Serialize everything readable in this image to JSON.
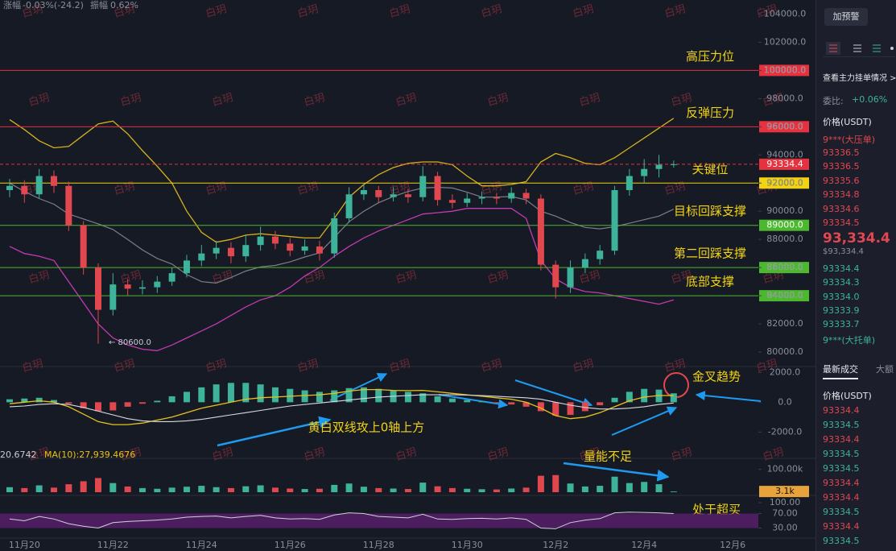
{
  "header": {
    "change_label": "涨幅",
    "change": "-0.03%(-24.2)",
    "amplitude_label": "振幅",
    "amplitude": "0.62%"
  },
  "watermark": "白玥",
  "chart_data": {
    "type": "candlestick",
    "up_color": "#3cb39a",
    "down_color": "#e0474f",
    "categories": [
      null,
      "11月20",
      null,
      null,
      null,
      null,
      null,
      "11月22",
      null,
      null,
      null,
      null,
      null,
      "11月24",
      null,
      null,
      null,
      null,
      null,
      "11月26",
      null,
      null,
      null,
      null,
      null,
      "11月28",
      null,
      null,
      null,
      null,
      null,
      "11月30",
      null,
      null,
      null,
      null,
      null,
      "12月2",
      null,
      null,
      null,
      null,
      null,
      "12月4",
      null,
      null,
      null,
      null,
      null,
      "12月6"
    ],
    "open": [
      91500,
      91800,
      91200,
      92500,
      91800,
      89000,
      86000,
      83000,
      84800,
      84500,
      84600,
      85000,
      85600,
      86500,
      87000,
      87400,
      86800,
      87600,
      88200,
      87700,
      87200,
      87500,
      87000,
      89500,
      91200,
      91500,
      91000,
      91200,
      91000,
      92500,
      90800,
      90600,
      90900,
      91000,
      90900,
      91300,
      90900,
      86200,
      84600,
      86000,
      86600,
      87200,
      91500,
      92500,
      93000,
      93300,
      null,
      null,
      null,
      null
    ],
    "high": [
      92300,
      92200,
      93000,
      92900,
      92100,
      89300,
      86300,
      85600,
      85200,
      85100,
      85400,
      86000,
      86900,
      87600,
      87900,
      87800,
      88300,
      88900,
      88600,
      88100,
      88000,
      87900,
      89900,
      91700,
      91900,
      91800,
      91700,
      91600,
      93200,
      92800,
      91200,
      91300,
      91400,
      91300,
      91700,
      91600,
      91200,
      86500,
      86500,
      87000,
      87600,
      91800,
      93000,
      93700,
      94000,
      93600,
      null,
      null,
      null,
      null
    ],
    "low": [
      91000,
      90600,
      90900,
      91300,
      88600,
      85500,
      80600,
      82600,
      84000,
      84100,
      84200,
      84700,
      85300,
      86100,
      86600,
      86300,
      86400,
      87200,
      87300,
      86800,
      86900,
      86500,
      86700,
      89200,
      90800,
      90600,
      90700,
      90600,
      90700,
      90400,
      90200,
      90300,
      90500,
      90500,
      90600,
      90500,
      85800,
      83800,
      84200,
      85600,
      86200,
      86900,
      91100,
      92000,
      92400,
      93100,
      null,
      null,
      null,
      null
    ],
    "close": [
      91800,
      91200,
      92500,
      91800,
      89000,
      86000,
      83000,
      84800,
      84500,
      84600,
      85000,
      85600,
      86500,
      87000,
      87400,
      86800,
      87600,
      88200,
      87700,
      87200,
      87500,
      87000,
      89500,
      91200,
      91500,
      91000,
      91200,
      91000,
      92500,
      90800,
      90600,
      90900,
      91000,
      90900,
      91300,
      90900,
      86200,
      84600,
      86000,
      86600,
      87200,
      91500,
      92500,
      93000,
      93300,
      93334.4,
      null,
      null,
      null,
      null
    ],
    "ylim": [
      79000,
      105000
    ],
    "yticks": [
      {
        "value": 104000,
        "label": "104000.0"
      },
      {
        "value": 102000,
        "label": "102000.0"
      },
      {
        "value": 100000,
        "label": "100000.0"
      },
      {
        "value": 98000,
        "label": "98000.0"
      },
      {
        "value": 96000,
        "label": "96000.0"
      },
      {
        "value": 94000,
        "label": "94000.0"
      },
      {
        "value": 92000,
        "label": "92000.0"
      },
      {
        "value": 90000,
        "label": "90000.0"
      },
      {
        "value": 88000,
        "label": "88000.0"
      },
      {
        "value": 86000,
        "label": "86000.0"
      },
      {
        "value": 84000,
        "label": "84000.0"
      },
      {
        "value": 82000,
        "label": "82000.0"
      },
      {
        "value": 80000,
        "label": "80000.0"
      }
    ],
    "grid": false,
    "current_price": 93334.4,
    "current_price_color": "#e5323e",
    "levels": [
      {
        "value": 100000,
        "label": "100000.0",
        "color": "#e5323e",
        "text_color": "#ffffff",
        "note": "高压力位"
      },
      {
        "value": 96000,
        "label": "96000.0",
        "color": "#e5323e",
        "text_color": "#ffffff",
        "note": "反弹压力"
      },
      {
        "value": 92000,
        "label": "92000.0",
        "color": "#f2d313",
        "text_color": "#111111",
        "note": "关键位"
      },
      {
        "value": 89000,
        "label": "89000.0",
        "color": "#4cb82e",
        "text_color": "#ffffff",
        "note": "目标回踩支撑"
      },
      {
        "value": 86000,
        "label": "86000.0",
        "color": "#4cb82e",
        "text_color": "#ffffff",
        "note": "第二回踩支撑"
      },
      {
        "value": 84000,
        "label": "84000.0",
        "color": "#4cb82e",
        "text_color": "#ffffff",
        "note": "底部支撑"
      }
    ],
    "low_annotation": "← 80600.0",
    "bollinger": {
      "upper_color": "#d4b11c",
      "mid_color": "#7c7f8a",
      "lower_color": "#c23bb0",
      "upper": [
        96500,
        95800,
        95000,
        94500,
        94600,
        95400,
        96200,
        96400,
        95500,
        94300,
        93200,
        92000,
        90000,
        88500,
        87800,
        88000,
        88300,
        88400,
        88300,
        88200,
        88100,
        88100,
        89500,
        91000,
        91900,
        92600,
        93100,
        93400,
        93500,
        93500,
        93300,
        92500,
        91800,
        91800,
        91900,
        92100,
        93500,
        94100,
        93800,
        93400,
        93300,
        93800,
        94500,
        95200,
        95900,
        96600,
        null,
        null,
        null,
        null
      ],
      "mid": [
        92000,
        91400,
        90900,
        90500,
        89800,
        89450,
        89100,
        88700,
        88000,
        87250,
        86650,
        86250,
        85500,
        85000,
        84900,
        85300,
        85750,
        86050,
        86150,
        86400,
        86750,
        87050,
        88150,
        89250,
        90000,
        90600,
        91050,
        91400,
        91650,
        91700,
        91650,
        91350,
        91000,
        91000,
        91050,
        90800,
        90000,
        89650,
        89200,
        88850,
        88750,
        88900,
        89150,
        89400,
        89650,
        90150,
        null,
        null,
        null,
        null
      ],
      "lower": [
        87500,
        87000,
        86800,
        86500,
        85000,
        83500,
        82000,
        81000,
        80500,
        80200,
        80100,
        80500,
        81000,
        81500,
        82000,
        82600,
        83200,
        83700,
        84000,
        84600,
        85400,
        86000,
        86800,
        87500,
        88100,
        88600,
        89000,
        89400,
        89800,
        89900,
        90000,
        90200,
        90200,
        90200,
        90200,
        89500,
        86500,
        85200,
        84600,
        84300,
        84200,
        84000,
        83800,
        83600,
        83400,
        83700,
        null,
        null,
        null,
        null
      ]
    },
    "macd": {
      "ylim": [
        -3500,
        2400
      ],
      "yticks": [
        {
          "value": 2000,
          "label": "2000.0"
        },
        {
          "value": 0,
          "label": "0.0"
        },
        {
          "value": -2000,
          "label": "-2000.0"
        }
      ],
      "dif_color": "#e8c21a",
      "dea_color": "#d8dae0",
      "hist": [
        200,
        250,
        300,
        150,
        -100,
        -400,
        -600,
        -550,
        -300,
        -100,
        100,
        400,
        700,
        1000,
        1200,
        1300,
        1300,
        1200,
        1000,
        900,
        800,
        700,
        800,
        950,
        1000,
        900,
        800,
        700,
        600,
        400,
        250,
        150,
        50,
        -50,
        -150,
        -300,
        -600,
        -900,
        -850,
        -600,
        -200,
        300,
        700,
        900,
        850,
        600,
        null,
        null,
        null,
        null
      ],
      "dif": [
        -100,
        0,
        100,
        0,
        -300,
        -800,
        -1300,
        -1500,
        -1500,
        -1400,
        -1200,
        -1000,
        -700,
        -400,
        -200,
        0,
        200,
        300,
        350,
        400,
        450,
        500,
        600,
        750,
        850,
        850,
        800,
        780,
        800,
        700,
        600,
        500,
        400,
        300,
        200,
        0,
        -400,
        -900,
        -1100,
        -1000,
        -700,
        -300,
        100,
        350,
        450,
        450,
        null,
        null,
        null,
        null
      ],
      "dea": [
        -300,
        -250,
        -150,
        -100,
        -150,
        -350,
        -600,
        -850,
        -1100,
        -1250,
        -1300,
        -1300,
        -1250,
        -1150,
        -1000,
        -850,
        -700,
        -550,
        -400,
        -250,
        -150,
        -50,
        50,
        150,
        250,
        350,
        400,
        450,
        500,
        500,
        500,
        480,
        450,
        400,
        350,
        300,
        200,
        0,
        -200,
        -350,
        -450,
        -450,
        -400,
        -300,
        -150,
        -50,
        null,
        null,
        null,
        null
      ]
    },
    "volume": {
      "ylim": [
        0,
        120000
      ],
      "yticks": [
        {
          "value": 100000,
          "label": "100.00k"
        }
      ],
      "legend": "20.6742",
      "ma_legend": "MA(10):27,939.4676",
      "ma_color": "#e8c21a",
      "current": {
        "value": 3100,
        "label": "3.1k"
      },
      "current_color": "#e8a33a",
      "values": [
        22000,
        18000,
        30000,
        20000,
        35000,
        48000,
        62000,
        40000,
        25000,
        18000,
        15000,
        20000,
        24000,
        28000,
        22000,
        18000,
        26000,
        30000,
        20000,
        16000,
        14000,
        15000,
        32000,
        38000,
        24000,
        18000,
        16000,
        14000,
        42000,
        26000,
        18000,
        15000,
        13000,
        12000,
        16000,
        20000,
        72000,
        75000,
        38000,
        25000,
        28000,
        68000,
        40000,
        45000,
        35000,
        3100,
        null,
        null,
        null,
        null
      ]
    },
    "rsi": {
      "ylim": [
        0,
        100
      ],
      "yticks": [
        {
          "value": 100,
          "label": "100.00"
        },
        {
          "value": 70,
          "label": "70.00"
        },
        {
          "value": 30,
          "label": "30.00"
        }
      ],
      "band_color": "#5a1f6e",
      "line_color": "#cfd2da",
      "values": [
        55,
        50,
        62,
        55,
        42,
        35,
        30,
        45,
        48,
        50,
        52,
        55,
        60,
        62,
        63,
        58,
        62,
        65,
        58,
        55,
        56,
        54,
        66,
        72,
        70,
        62,
        60,
        58,
        68,
        55,
        54,
        56,
        57,
        55,
        58,
        54,
        30,
        28,
        45,
        52,
        56,
        72,
        74,
        73,
        72,
        70,
        null,
        null,
        null,
        null
      ]
    },
    "annotations": {
      "macd_cross": "黄白双线攻上0轴上方",
      "golden_cross": "金叉趋势",
      "low_volume": "量能不足",
      "overbought": "处于超买"
    }
  },
  "sidebar": {
    "alert_button": "加预警",
    "order_book_link": "查看主力挂单情况 >",
    "commission_ratio_label": "委比:",
    "commission_ratio": "+0.06%",
    "price_header": "价格(USDT)",
    "asks": [
      "9***(大压单)",
      "93336.5",
      "93336.5",
      "93335.6",
      "93334.8",
      "93334.6",
      "93334.5"
    ],
    "last_price": "93,334.4",
    "last_price_usd": "$93,334.4",
    "bids": [
      "93334.4",
      "93334.3",
      "93334.0",
      "93333.9",
      "93333.7",
      "9***(大托单)"
    ],
    "tabs": [
      "最新成交",
      "大额"
    ],
    "trades_header": "价格(USDT)",
    "trades": [
      {
        "price": "93334.4",
        "color": "#e0474f"
      },
      {
        "price": "93334.5",
        "color": "#3cb39a"
      },
      {
        "price": "93334.4",
        "color": "#e0474f"
      },
      {
        "price": "93334.5",
        "color": "#3cb39a"
      },
      {
        "price": "93334.5",
        "color": "#3cb39a"
      },
      {
        "price": "93334.4",
        "color": "#e0474f"
      },
      {
        "price": "93334.4",
        "color": "#e0474f"
      },
      {
        "price": "93334.5",
        "color": "#3cb39a"
      },
      {
        "price": "93334.4",
        "color": "#e0474f"
      },
      {
        "price": "93334.5",
        "color": "#3cb39a"
      }
    ]
  }
}
